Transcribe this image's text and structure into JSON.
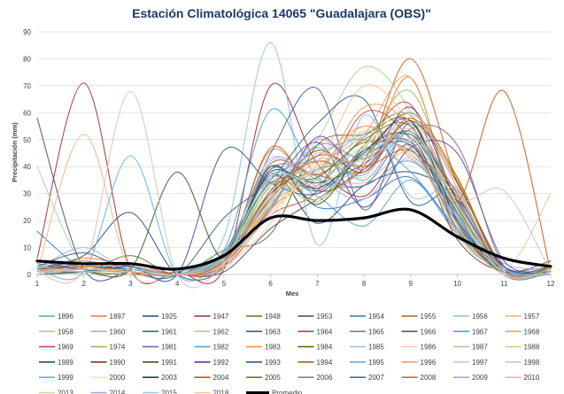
{
  "chart_data": {
    "type": "line",
    "title": "Estación Climatológica 14065 \"Guadalajara (OBS)\"",
    "xlabel": "Mes",
    "ylabel": "Precipitación (mm)",
    "x": [
      1,
      2,
      3,
      4,
      5,
      6,
      7,
      8,
      9,
      10,
      11,
      12
    ],
    "xlim": [
      1,
      12
    ],
    "ylim": [
      0,
      90
    ],
    "yticks": [
      0,
      10,
      20,
      30,
      40,
      50,
      60,
      70,
      80,
      90
    ],
    "grid": true,
    "legend_position": "bottom",
    "series": [
      {
        "name": "1896",
        "color": "#5b9bd5",
        "values": [
          5,
          3,
          2,
          1,
          8,
          36,
          29,
          18,
          35,
          15,
          2,
          3
        ]
      },
      {
        "name": "1897",
        "color": "#ed7d31",
        "values": [
          1,
          6,
          3,
          0,
          5,
          46,
          31,
          40,
          73,
          20,
          2,
          1
        ]
      },
      {
        "name": "1925",
        "color": "#264478",
        "values": [
          2,
          7,
          23,
          0,
          3,
          37,
          19,
          33,
          38,
          28,
          3,
          1
        ]
      },
      {
        "name": "1947",
        "color": "#9e2a2b",
        "values": [
          6,
          71,
          2,
          1,
          2,
          70,
          41,
          29,
          48,
          13,
          1,
          5
        ]
      },
      {
        "name": "1948",
        "color": "#636e2c",
        "values": [
          3,
          1,
          7,
          0,
          9,
          15,
          48,
          52,
          57,
          25,
          2,
          1
        ]
      },
      {
        "name": "1953",
        "color": "#4e3f70",
        "values": [
          58,
          2,
          1,
          0,
          1,
          17,
          28,
          39,
          52,
          22,
          1,
          0
        ]
      },
      {
        "name": "1954",
        "color": "#2e75b6",
        "values": [
          16,
          2,
          0,
          0,
          3,
          40,
          25,
          28,
          36,
          16,
          0,
          0
        ]
      },
      {
        "name": "1955",
        "color": "#c55a11",
        "values": [
          2,
          1,
          3,
          0,
          4,
          47,
          31,
          42,
          80,
          34,
          1,
          2
        ]
      },
      {
        "name": "1956",
        "color": "#8fbfe0",
        "values": [
          3,
          0,
          1,
          0,
          14,
          86,
          11,
          59,
          29,
          32,
          0,
          1
        ]
      },
      {
        "name": "1957",
        "color": "#f4b183",
        "values": [
          1,
          52,
          1,
          0,
          2,
          23,
          36,
          34,
          46,
          30,
          2,
          0
        ]
      },
      {
        "name": "1958",
        "color": "#a9d18e",
        "values": [
          40,
          3,
          1,
          0,
          5,
          26,
          50,
          77,
          60,
          15,
          2,
          1
        ]
      },
      {
        "name": "1960",
        "color": "#b4a7d6",
        "values": [
          2,
          10,
          1,
          0,
          4,
          42,
          35,
          28,
          43,
          19,
          4,
          2
        ]
      },
      {
        "name": "1961",
        "color": "#3f5fa0",
        "values": [
          1,
          3,
          2,
          0,
          8,
          45,
          69,
          24,
          56,
          16,
          1,
          0
        ]
      },
      {
        "name": "1962",
        "color": "#f6b26b",
        "values": [
          0,
          1,
          1,
          0,
          5,
          30,
          42,
          55,
          43,
          26,
          0,
          2
        ]
      },
      {
        "name": "1963",
        "color": "#335d8c",
        "values": [
          3,
          8,
          1,
          0,
          21,
          35,
          56,
          65,
          27,
          31,
          3,
          1
        ]
      },
      {
        "name": "1964",
        "color": "#b4463f",
        "values": [
          1,
          4,
          3,
          0,
          7,
          36,
          28,
          48,
          63,
          19,
          1,
          0
        ]
      },
      {
        "name": "1965",
        "color": "#7a8a3e",
        "values": [
          2,
          5,
          1,
          0,
          4,
          33,
          33,
          51,
          59,
          27,
          2,
          3
        ]
      },
      {
        "name": "1966",
        "color": "#5e4b8b",
        "values": [
          5,
          2,
          2,
          0,
          6,
          31,
          49,
          25,
          47,
          45,
          5,
          2
        ]
      },
      {
        "name": "1967",
        "color": "#4aa5c8",
        "values": [
          1,
          1,
          2,
          0,
          9,
          61,
          36,
          33,
          42,
          24,
          0,
          1
        ]
      },
      {
        "name": "1968",
        "color": "#e9a36f",
        "values": [
          3,
          2,
          1,
          0,
          4,
          24,
          40,
          52,
          73,
          22,
          2,
          1
        ]
      },
      {
        "name": "1969",
        "color": "#c0504d",
        "values": [
          0,
          1,
          4,
          0,
          3,
          22,
          31,
          60,
          50,
          17,
          1,
          0
        ]
      },
      {
        "name": "1974",
        "color": "#9bbb59",
        "values": [
          2,
          3,
          1,
          0,
          8,
          34,
          27,
          47,
          68,
          26,
          1,
          2
        ]
      },
      {
        "name": "1981",
        "color": "#8064a2",
        "values": [
          4,
          2,
          1,
          0,
          5,
          39,
          37,
          33,
          54,
          48,
          3,
          1
        ]
      },
      {
        "name": "1982",
        "color": "#4bacc6",
        "values": [
          1,
          3,
          2,
          0,
          6,
          28,
          44,
          50,
          38,
          17,
          2,
          0
        ]
      },
      {
        "name": "1983",
        "color": "#f79646",
        "values": [
          2,
          1,
          0,
          0,
          5,
          25,
          36,
          62,
          55,
          23,
          0,
          1
        ]
      },
      {
        "name": "1984",
        "color": "#7f6000",
        "values": [
          1,
          2,
          1,
          0,
          4,
          30,
          39,
          44,
          60,
          36,
          1,
          3
        ]
      },
      {
        "name": "1985",
        "color": "#9dc3e6",
        "values": [
          2,
          1,
          3,
          0,
          7,
          43,
          33,
          40,
          49,
          20,
          1,
          0
        ]
      },
      {
        "name": "1986",
        "color": "#f8cbad",
        "values": [
          0,
          2,
          1,
          0,
          3,
          19,
          45,
          36,
          58,
          25,
          1,
          2
        ]
      },
      {
        "name": "1987",
        "color": "#a9d08e",
        "values": [
          3,
          1,
          2,
          0,
          6,
          33,
          39,
          43,
          52,
          30,
          2,
          0
        ]
      },
      {
        "name": "1988",
        "color": "#d9c97a",
        "values": [
          1,
          2,
          1,
          0,
          4,
          27,
          40,
          53,
          47,
          16,
          0,
          1
        ]
      },
      {
        "name": "1989",
        "color": "#1f4e79",
        "values": [
          2,
          3,
          2,
          0,
          8,
          37,
          34,
          41,
          53,
          28,
          1,
          2
        ]
      },
      {
        "name": "1990",
        "color": "#843c0c",
        "values": [
          1,
          2,
          1,
          0,
          5,
          29,
          46,
          38,
          57,
          34,
          2,
          1
        ]
      },
      {
        "name": "1991",
        "color": "#385723",
        "values": [
          0,
          1,
          2,
          38,
          6,
          40,
          26,
          46,
          51,
          19,
          1,
          0
        ]
      },
      {
        "name": "1992",
        "color": "#7030a0",
        "values": [
          3,
          2,
          1,
          0,
          7,
          24,
          51,
          39,
          62,
          27,
          3,
          1
        ]
      },
      {
        "name": "1993",
        "color": "#2f5597",
        "values": [
          2,
          1,
          3,
          0,
          46,
          34,
          30,
          44,
          48,
          21,
          0,
          2
        ]
      },
      {
        "name": "1994",
        "color": "#a5612b",
        "values": [
          1,
          3,
          1,
          0,
          5,
          41,
          37,
          49,
          46,
          29,
          1,
          1
        ]
      },
      {
        "name": "1995",
        "color": "#6fa8dc",
        "values": [
          2,
          1,
          2,
          0,
          6,
          35,
          42,
          37,
          56,
          24,
          2,
          0
        ]
      },
      {
        "name": "1996",
        "color": "#f4a261",
        "values": [
          1,
          2,
          1,
          0,
          4,
          26,
          38,
          55,
          44,
          31,
          1,
          2
        ]
      },
      {
        "name": "1997",
        "color": "#b6d7a8",
        "values": [
          3,
          1,
          2,
          0,
          7,
          32,
          28,
          47,
          59,
          18,
          0,
          1
        ]
      },
      {
        "name": "1998",
        "color": "#c9c9c9",
        "values": [
          0,
          2,
          1,
          0,
          5,
          36,
          43,
          42,
          50,
          26,
          2,
          0
        ]
      },
      {
        "name": "1999",
        "color": "#5ab4e5",
        "values": [
          2,
          1,
          44,
          0,
          6,
          30,
          47,
          35,
          53,
          22,
          1,
          2
        ]
      },
      {
        "name": "2000",
        "color": "#fbe5a6",
        "values": [
          1,
          3,
          1,
          0,
          4,
          22,
          40,
          48,
          61,
          33,
          1,
          1
        ]
      },
      {
        "name": "2003",
        "color": "#203864",
        "values": [
          2,
          1,
          2,
          0,
          6,
          38,
          32,
          45,
          57,
          20,
          2,
          0
        ]
      },
      {
        "name": "2004",
        "color": "#c65911",
        "values": [
          1,
          2,
          1,
          0,
          5,
          28,
          44,
          40,
          46,
          27,
          68,
          1
        ]
      },
      {
        "name": "2005",
        "color": "#548235",
        "values": [
          3,
          1,
          2,
          0,
          8,
          34,
          36,
          50,
          55,
          25,
          1,
          2
        ]
      },
      {
        "name": "2006",
        "color": "#7f7f99",
        "values": [
          1,
          2,
          1,
          0,
          4,
          25,
          48,
          43,
          52,
          30,
          0,
          1
        ]
      },
      {
        "name": "2007",
        "color": "#41719c",
        "values": [
          2,
          1,
          2,
          0,
          6,
          39,
          31,
          46,
          49,
          23,
          2,
          0
        ]
      },
      {
        "name": "2008",
        "color": "#e46c0a",
        "values": [
          1,
          3,
          1,
          0,
          5,
          31,
          42,
          38,
          58,
          35,
          1,
          2
        ]
      },
      {
        "name": "2009",
        "color": "#8eb4e3",
        "values": [
          2,
          1,
          2,
          0,
          7,
          27,
          39,
          52,
          47,
          19,
          1,
          0
        ]
      },
      {
        "name": "2010",
        "color": "#e6b9b8",
        "values": [
          1,
          2,
          68,
          0,
          4,
          33,
          45,
          41,
          54,
          28,
          31,
          1
        ]
      },
      {
        "name": "2013",
        "color": "#c4d79b",
        "values": [
          3,
          1,
          2,
          0,
          6,
          37,
          33,
          44,
          51,
          24,
          2,
          30
        ]
      },
      {
        "name": "2014",
        "color": "#b1a0c7",
        "values": [
          1,
          2,
          1,
          0,
          5,
          24,
          50,
          39,
          60,
          32,
          1,
          1
        ]
      },
      {
        "name": "2015",
        "color": "#92cddc",
        "values": [
          2,
          1,
          2,
          0,
          8,
          36,
          35,
          47,
          45,
          21,
          2,
          0
        ]
      },
      {
        "name": "2018",
        "color": "#fac090",
        "values": [
          1,
          2,
          1,
          0,
          4,
          29,
          41,
          70,
          56,
          26,
          0,
          2
        ]
      },
      {
        "name": "Promedio",
        "color": "#000000",
        "values": [
          5,
          4,
          4,
          2,
          7,
          21,
          20,
          21,
          24,
          14,
          6,
          3
        ]
      }
    ]
  }
}
